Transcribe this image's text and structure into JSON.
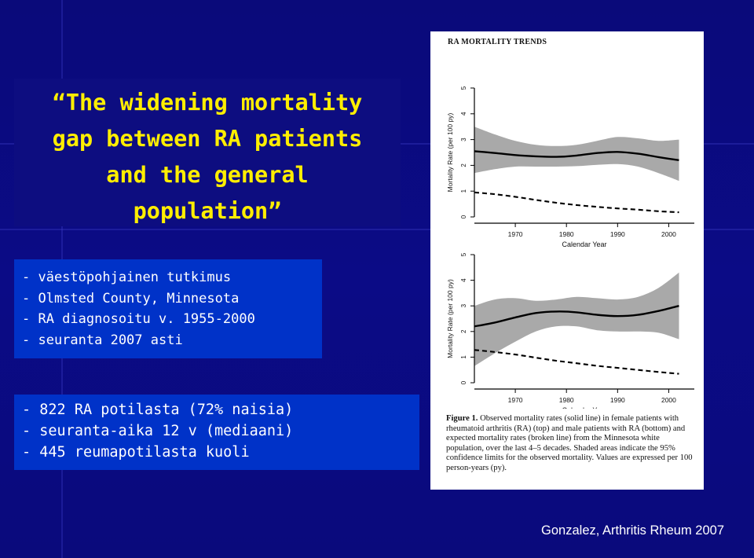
{
  "slide": {
    "title": "“The widening mortality gap between RA patients and the general population”",
    "title_lines": [
      "“The widening mortality",
      "gap between RA patients",
      "and the general",
      "population”"
    ],
    "box1_lines": [
      "- väestöpohjainen tutkimus",
      "- Olmsted County, Minnesota",
      "- RA diagnosoitu v. 1955-2000",
      "- seuranta 2007 asti"
    ],
    "box2_lines": [
      "- 822 RA potilasta (72% naisia)",
      "- seuranta-aika 12 v (mediaani)",
      "- 445 reumapotilasta kuoli"
    ],
    "credit": "Gonzalez, Arthritis Rheum 2007"
  },
  "figure": {
    "header": "RA MORTALITY TRENDS",
    "caption_label": "Figure 1.",
    "caption_text": "Observed mortality rates (solid line) in female patients with rheumatoid arthritis (RA) (top) and male patients with RA (bottom) and expected mortality rates (broken line) from the Minnesota white population, over the last 4–5 decades. Shaded areas indicate the 95% confidence limits for the observed mortality. Values are expressed per 100 person-years (py)."
  },
  "chart_data": [
    {
      "type": "line",
      "panel": "top",
      "xlabel": "Calendar Year",
      "ylabel": "Mortality Rate (per 100 py)",
      "xlim": [
        1962,
        2005
      ],
      "ylim": [
        0,
        5
      ],
      "xticks": [
        1970,
        1980,
        1990,
        2000
      ],
      "yticks": [
        0,
        1,
        2,
        3,
        4,
        5
      ],
      "grid": false,
      "series": [
        {
          "style": "solid",
          "x": [
            1962,
            1966,
            1970,
            1974,
            1978,
            1982,
            1986,
            1990,
            1994,
            1998,
            2002
          ],
          "y": [
            2.55,
            2.48,
            2.4,
            2.35,
            2.33,
            2.38,
            2.48,
            2.52,
            2.45,
            2.32,
            2.2
          ]
        },
        {
          "style": "dashed",
          "x": [
            1962,
            1966,
            1970,
            1974,
            1978,
            1982,
            1986,
            1990,
            1994,
            1998,
            2002
          ],
          "y": [
            0.95,
            0.88,
            0.78,
            0.66,
            0.55,
            0.46,
            0.39,
            0.33,
            0.28,
            0.22,
            0.18
          ]
        }
      ],
      "confidence_band": {
        "x": [
          1962,
          1966,
          1970,
          1974,
          1978,
          1982,
          1986,
          1990,
          1994,
          1998,
          2002
        ],
        "upper": [
          3.5,
          3.2,
          2.95,
          2.8,
          2.75,
          2.8,
          2.95,
          3.1,
          3.05,
          2.95,
          3.0
        ],
        "lower": [
          1.7,
          1.85,
          1.95,
          1.95,
          1.95,
          1.97,
          2.02,
          2.05,
          1.95,
          1.7,
          1.4
        ]
      }
    },
    {
      "type": "line",
      "panel": "bottom",
      "xlabel": "Calendar Year",
      "ylabel": "Mortality Rate (per 100 py)",
      "xlim": [
        1962,
        2005
      ],
      "ylim": [
        0,
        5
      ],
      "xticks": [
        1970,
        1980,
        1990,
        2000
      ],
      "yticks": [
        0,
        1,
        2,
        3,
        4,
        5
      ],
      "grid": false,
      "series": [
        {
          "style": "solid",
          "x": [
            1962,
            1966,
            1970,
            1974,
            1978,
            1982,
            1986,
            1990,
            1994,
            1998,
            2002
          ],
          "y": [
            2.2,
            2.35,
            2.55,
            2.72,
            2.78,
            2.75,
            2.65,
            2.6,
            2.65,
            2.8,
            3.0
          ]
        },
        {
          "style": "dashed",
          "x": [
            1962,
            1966,
            1970,
            1974,
            1978,
            1982,
            1986,
            1990,
            1994,
            1998,
            2002
          ],
          "y": [
            1.28,
            1.2,
            1.1,
            0.98,
            0.86,
            0.76,
            0.66,
            0.58,
            0.5,
            0.42,
            0.35
          ]
        }
      ],
      "confidence_band": {
        "x": [
          1962,
          1966,
          1970,
          1974,
          1978,
          1982,
          1986,
          1990,
          1994,
          1998,
          2002
        ],
        "upper": [
          3.0,
          3.25,
          3.3,
          3.2,
          3.25,
          3.35,
          3.3,
          3.25,
          3.35,
          3.7,
          4.3
        ],
        "lower": [
          0.65,
          1.15,
          1.6,
          2.0,
          2.2,
          2.2,
          2.05,
          2.0,
          2.0,
          1.95,
          1.7
        ]
      }
    }
  ]
}
